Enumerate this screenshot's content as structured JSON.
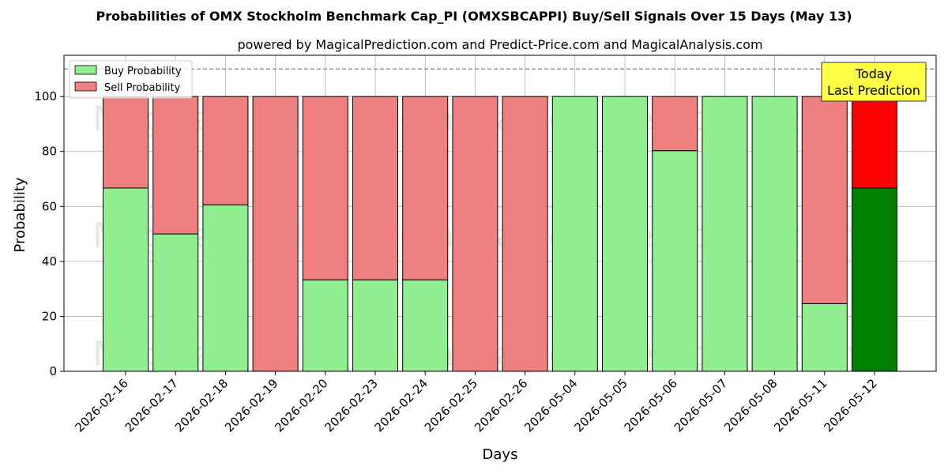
{
  "chart_data": {
    "type": "bar",
    "stacked": true,
    "title": "Probabilities of OMX Stockholm Benchmark Cap_PI (OMXSBCAPPI) Buy/Sell Signals Over 15 Days (May 13)",
    "subtitle": "powered by MagicalPrediction.com and Predict-Price.com and MagicalAnalysis.com",
    "xlabel": "Days",
    "ylabel": "Probability",
    "ylim": [
      0,
      115
    ],
    "yticks": [
      0,
      20,
      40,
      60,
      80,
      100
    ],
    "reference_line": 110,
    "grid": true,
    "legend_position": "top-left",
    "categories": [
      "2026-02-16",
      "2026-02-17",
      "2026-02-18",
      "2026-02-19",
      "2026-02-20",
      "2026-02-23",
      "2026-02-24",
      "2026-02-25",
      "2026-02-26",
      "2026-05-04",
      "2026-05-05",
      "2026-05-06",
      "2026-05-07",
      "2026-05-08",
      "2026-05-11",
      "2026-05-12"
    ],
    "series": [
      {
        "name": "Buy Probability",
        "color": "#90ee90",
        "highlight_color": "#008000",
        "values": [
          66.7,
          50,
          60.6,
          0,
          33.3,
          33.3,
          33.3,
          0,
          0,
          100,
          100,
          80.3,
          100,
          100,
          24.6,
          66.7
        ]
      },
      {
        "name": "Sell Probability",
        "color": "#f08080",
        "highlight_color": "#ff0000",
        "values": [
          33.3,
          50,
          39.4,
          100,
          66.7,
          66.7,
          66.7,
          100,
          100,
          0,
          0,
          19.7,
          0,
          0,
          75.4,
          33.3
        ]
      }
    ],
    "highlight_index": 15,
    "annotation": {
      "line1": "Today",
      "line2": "Last Prediction",
      "color": "#ffff44"
    },
    "watermarks": [
      "MagicalAnalysis.com",
      "MagicalPrediction.com"
    ]
  }
}
